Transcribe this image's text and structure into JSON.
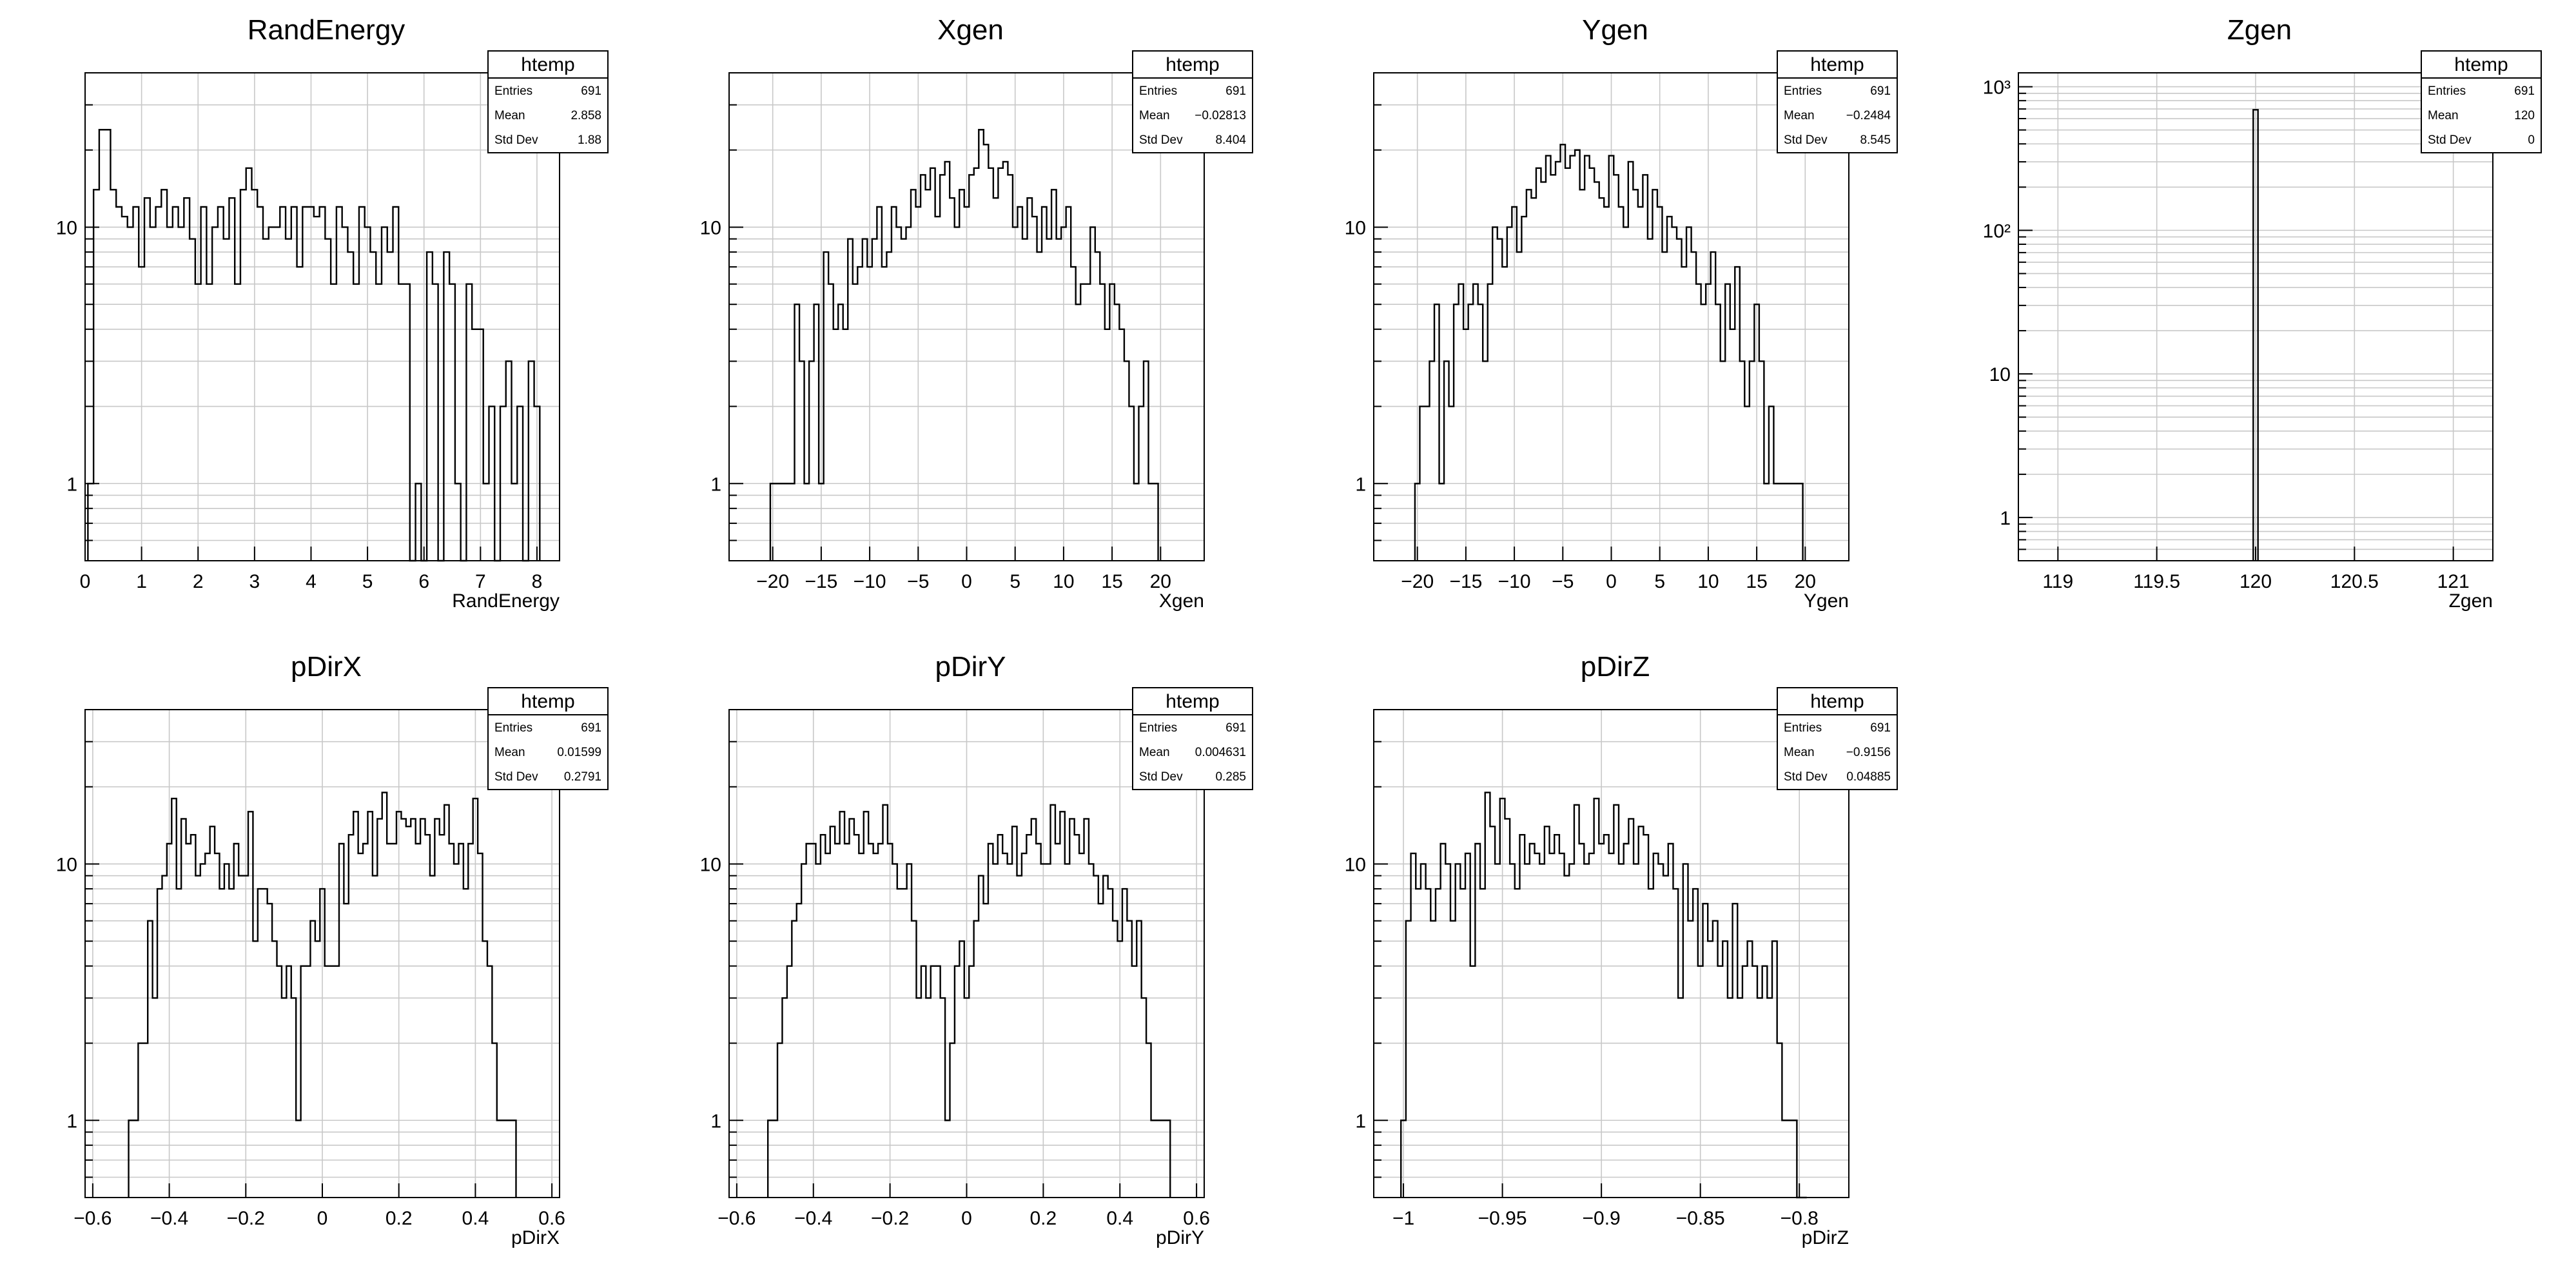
{
  "chart_data": [
    {
      "type": "histogram",
      "title": "RandEnergy",
      "xlabel": "RandEnergy",
      "ylabel": "",
      "xlim": [
        0,
        8.4
      ],
      "ylim": [
        0.5,
        40
      ],
      "yscale": "log",
      "grid": true,
      "xticks": [
        0,
        1,
        2,
        3,
        4,
        5,
        6,
        7,
        8
      ],
      "xtick_labels": [
        "0",
        "1",
        "2",
        "3",
        "4",
        "5",
        "6",
        "7",
        "8"
      ],
      "yticks": [
        1,
        10
      ],
      "ytick_labels": [
        "1",
        "10"
      ],
      "stats": {
        "name": "htemp",
        "rows": [
          [
            "Entries",
            "691"
          ],
          [
            "Mean",
            "2.858"
          ],
          [
            "Std Dev",
            "1.88"
          ]
        ]
      },
      "bin_width": 0.1,
      "x": [
        0.1,
        0.2,
        0.3,
        0.4,
        0.5,
        0.6,
        0.7,
        0.8,
        0.9,
        1.0,
        1.1,
        1.2,
        1.3,
        1.4,
        1.5,
        1.6,
        1.7,
        1.8,
        1.9,
        2.0,
        2.1,
        2.2,
        2.3,
        2.4,
        2.5,
        2.6,
        2.7,
        2.8,
        2.9,
        3.0,
        3.1,
        3.2,
        3.3,
        3.4,
        3.5,
        3.6,
        3.7,
        3.8,
        3.9,
        4.0,
        4.1,
        4.2,
        4.3,
        4.4,
        4.5,
        4.6,
        4.7,
        4.8,
        4.9,
        5.0,
        5.1,
        5.2,
        5.3,
        5.4,
        5.5,
        5.6,
        5.7,
        5.8,
        5.9,
        6.0,
        6.1,
        6.2,
        6.3,
        6.4,
        6.5,
        6.6,
        6.7,
        6.8,
        6.9,
        7.0,
        7.1,
        7.2,
        7.3,
        7.4,
        7.5,
        7.6,
        7.7,
        7.8,
        7.9,
        8.0
      ],
      "y": [
        1,
        14,
        24,
        24,
        14,
        12,
        11,
        10,
        12,
        7,
        13,
        10,
        12,
        14,
        10,
        12,
        10,
        13,
        9,
        6,
        12,
        6,
        10,
        12,
        9,
        13,
        6,
        14,
        17,
        14,
        12,
        9,
        10,
        10,
        12,
        9,
        12,
        7,
        12,
        12,
        11,
        12,
        9,
        6,
        12,
        10,
        8,
        6,
        12,
        10,
        8,
        6,
        10,
        8,
        12,
        6,
        6,
        0,
        1,
        0,
        8,
        6,
        0,
        8,
        6,
        1,
        0,
        6,
        4,
        4,
        1,
        2,
        0,
        2,
        3,
        1,
        2,
        0,
        3,
        2
      ]
    },
    {
      "type": "histogram",
      "title": "Xgen",
      "xlabel": "Xgen",
      "ylabel": "",
      "xlim": [
        -24.5,
        24.5
      ],
      "ylim": [
        0.5,
        40
      ],
      "yscale": "log",
      "grid": true,
      "xticks": [
        -20,
        -15,
        -10,
        -5,
        0,
        5,
        10,
        15,
        20
      ],
      "xtick_labels": [
        "−20",
        "−15",
        "−10",
        "−5",
        "0",
        "5",
        "10",
        "15",
        "20"
      ],
      "yticks": [
        1,
        10
      ],
      "ytick_labels": [
        "1",
        "10"
      ],
      "stats": {
        "name": "htemp",
        "rows": [
          [
            "Entries",
            "691"
          ],
          [
            "Mean",
            "−0.02813"
          ],
          [
            "Std Dev",
            "8.404"
          ]
        ]
      },
      "bin_width": 0.5,
      "x": [
        -20.0,
        -19.5,
        -19.0,
        -18.5,
        -18.0,
        -17.5,
        -17.0,
        -16.5,
        -16.0,
        -15.5,
        -15.0,
        -14.5,
        -14.0,
        -13.5,
        -13.0,
        -12.5,
        -12.0,
        -11.5,
        -11.0,
        -10.5,
        -10.0,
        -9.5,
        -9.0,
        -8.5,
        -8.0,
        -7.5,
        -7.0,
        -6.5,
        -6.0,
        -5.5,
        -5.0,
        -4.5,
        -4.0,
        -3.5,
        -3.0,
        -2.5,
        -2.0,
        -1.5,
        -1.0,
        -0.5,
        0.0,
        0.5,
        1.0,
        1.5,
        2.0,
        2.5,
        3.0,
        3.5,
        4.0,
        4.5,
        5.0,
        5.5,
        6.0,
        6.5,
        7.0,
        7.5,
        8.0,
        8.5,
        9.0,
        9.5,
        10.0,
        10.5,
        11.0,
        11.5,
        12.0,
        12.5,
        13.0,
        13.5,
        14.0,
        14.5,
        15.0,
        15.5,
        16.0,
        16.5,
        17.0,
        17.5,
        18.0,
        18.5,
        19.0,
        19.5
      ],
      "y": [
        1,
        1,
        1,
        1,
        1,
        5,
        3,
        1,
        3,
        5,
        1,
        8,
        6,
        4,
        5,
        4,
        9,
        6,
        7,
        9,
        7,
        9,
        12,
        7,
        8,
        12,
        10,
        9,
        10,
        14,
        12,
        16,
        14,
        17,
        11,
        16,
        18,
        13,
        10,
        14,
        12,
        16,
        17,
        24,
        21,
        17,
        13,
        17,
        18,
        16,
        10,
        12,
        9,
        13,
        11,
        8,
        12,
        9,
        14,
        9,
        10,
        12,
        7,
        5,
        6,
        6,
        10,
        8,
        6,
        4,
        6,
        5,
        4,
        3,
        2,
        1,
        2,
        3,
        1,
        1
      ]
    },
    {
      "type": "histogram",
      "title": "Ygen",
      "xlabel": "Ygen",
      "ylabel": "",
      "xlim": [
        -24.5,
        24.5
      ],
      "ylim": [
        0.5,
        40
      ],
      "yscale": "log",
      "grid": true,
      "xticks": [
        -20,
        -15,
        -10,
        -5,
        0,
        5,
        10,
        15,
        20
      ],
      "xtick_labels": [
        "−20",
        "−15",
        "−10",
        "−5",
        "0",
        "5",
        "10",
        "15",
        "20"
      ],
      "yticks": [
        1,
        10
      ],
      "ytick_labels": [
        "1",
        "10"
      ],
      "stats": {
        "name": "htemp",
        "rows": [
          [
            "Entries",
            "691"
          ],
          [
            "Mean",
            "−0.2484"
          ],
          [
            "Std Dev",
            "8.545"
          ]
        ]
      },
      "bin_width": 0.5,
      "x": [
        -20.0,
        -19.5,
        -19.0,
        -18.5,
        -18.0,
        -17.5,
        -17.0,
        -16.5,
        -16.0,
        -15.5,
        -15.0,
        -14.5,
        -14.0,
        -13.5,
        -13.0,
        -12.5,
        -12.0,
        -11.5,
        -11.0,
        -10.5,
        -10.0,
        -9.5,
        -9.0,
        -8.5,
        -8.0,
        -7.5,
        -7.0,
        -6.5,
        -6.0,
        -5.5,
        -5.0,
        -4.5,
        -4.0,
        -3.5,
        -3.0,
        -2.5,
        -2.0,
        -1.5,
        -1.0,
        -0.5,
        0.0,
        0.5,
        1.0,
        1.5,
        2.0,
        2.5,
        3.0,
        3.5,
        4.0,
        4.5,
        5.0,
        5.5,
        6.0,
        6.5,
        7.0,
        7.5,
        8.0,
        8.5,
        9.0,
        9.5,
        10.0,
        10.5,
        11.0,
        11.5,
        12.0,
        12.5,
        13.0,
        13.5,
        14.0,
        14.5,
        15.0,
        15.5,
        16.0,
        16.5,
        17.0,
        17.5,
        18.0,
        18.5,
        19.0,
        19.5
      ],
      "y": [
        1,
        2,
        2,
        3,
        5,
        1,
        3,
        2,
        5,
        6,
        4,
        5,
        6,
        5,
        3,
        6,
        10,
        9,
        7,
        10,
        12,
        8,
        11,
        14,
        13,
        17,
        15,
        19,
        16,
        18,
        21,
        17,
        19,
        20,
        14,
        19,
        17,
        15,
        13,
        12,
        19,
        16,
        12,
        10,
        18,
        14,
        12,
        16,
        9,
        14,
        12,
        8,
        11,
        10,
        9,
        7,
        10,
        8,
        6,
        5,
        6,
        8,
        5,
        3,
        6,
        4,
        7,
        3,
        2,
        3,
        5,
        3,
        1,
        2,
        1,
        1,
        1,
        1,
        1,
        1
      ]
    },
    {
      "type": "histogram",
      "title": "Zgen",
      "xlabel": "Zgen",
      "ylabel": "",
      "xlim": [
        118.8,
        121.2
      ],
      "ylim": [
        0.5,
        1250
      ],
      "yscale": "log",
      "grid": true,
      "xticks": [
        119,
        119.5,
        120,
        120.5,
        121
      ],
      "xtick_labels": [
        "119",
        "119.5",
        "120",
        "120.5",
        "121"
      ],
      "yticks": [
        1,
        10,
        100,
        1000
      ],
      "ytick_labels": [
        "1",
        "10",
        "10²",
        "10³"
      ],
      "stats": {
        "name": "htemp",
        "rows": [
          [
            "Entries",
            "691"
          ],
          [
            "Mean",
            "120"
          ],
          [
            "Std Dev",
            "0"
          ]
        ]
      },
      "bin_width": 0.024,
      "x": [
        120.0
      ],
      "y": [
        691
      ]
    },
    {
      "type": "histogram",
      "title": "pDirX",
      "xlabel": "pDirX",
      "ylabel": "",
      "xlim": [
        -0.62,
        0.62
      ],
      "ylim": [
        0.5,
        40
      ],
      "yscale": "log",
      "grid": true,
      "xticks": [
        -0.6,
        -0.4,
        -0.2,
        0,
        0.2,
        0.4,
        0.6
      ],
      "xtick_labels": [
        "−0.6",
        "−0.4",
        "−0.2",
        "0",
        "0.2",
        "0.4",
        "0.6"
      ],
      "yticks": [
        1,
        10
      ],
      "ytick_labels": [
        "1",
        "10"
      ],
      "stats": {
        "name": "htemp",
        "rows": [
          [
            "Entries",
            "691"
          ],
          [
            "Mean",
            "0.01599"
          ],
          [
            "Std Dev",
            "0.2791"
          ]
        ]
      },
      "bin_width": 0.0125,
      "x": [
        -0.5,
        -0.4875,
        -0.475,
        -0.4625,
        -0.45,
        -0.4375,
        -0.425,
        -0.4125,
        -0.4,
        -0.3875,
        -0.375,
        -0.3625,
        -0.35,
        -0.3375,
        -0.325,
        -0.3125,
        -0.3,
        -0.2875,
        -0.275,
        -0.2625,
        -0.25,
        -0.2375,
        -0.225,
        -0.2125,
        -0.2,
        -0.1875,
        -0.175,
        -0.1625,
        -0.15,
        -0.1375,
        -0.125,
        -0.1125,
        -0.1,
        -0.0875,
        -0.075,
        -0.0625,
        -0.05,
        -0.0375,
        -0.025,
        -0.0125,
        0.0,
        0.0125,
        0.025,
        0.0375,
        0.05,
        0.0625,
        0.075,
        0.0875,
        0.1,
        0.1125,
        0.125,
        0.1375,
        0.15,
        0.1625,
        0.175,
        0.1875,
        0.2,
        0.2125,
        0.225,
        0.2375,
        0.25,
        0.2625,
        0.275,
        0.2875,
        0.3,
        0.3125,
        0.325,
        0.3375,
        0.35,
        0.3625,
        0.375,
        0.3875,
        0.4,
        0.4125,
        0.425,
        0.4375,
        0.45,
        0.4625,
        0.475,
        0.4875,
        0.5
      ],
      "y": [
        1,
        1,
        2,
        2,
        6,
        3,
        8,
        9,
        12,
        18,
        8,
        15,
        12,
        13,
        9,
        10,
        11,
        14,
        11,
        8,
        10,
        8,
        12,
        9,
        9,
        16,
        5,
        8,
        8,
        7,
        5,
        4,
        3,
        4,
        3,
        1,
        4,
        4,
        6,
        5,
        8,
        4,
        4,
        4,
        12,
        7,
        13,
        16,
        11,
        12,
        16,
        9,
        15,
        19,
        12,
        12,
        16,
        15,
        14,
        15,
        12,
        15,
        13,
        9,
        15,
        13,
        17,
        12,
        10,
        12,
        8,
        12,
        18,
        11,
        5,
        4,
        2,
        1,
        1,
        1,
        1
      ]
    },
    {
      "type": "histogram",
      "title": "pDirY",
      "xlabel": "pDirY",
      "ylabel": "",
      "xlim": [
        -0.62,
        0.62
      ],
      "ylim": [
        0.5,
        40
      ],
      "yscale": "log",
      "grid": true,
      "xticks": [
        -0.6,
        -0.4,
        -0.2,
        0,
        0.2,
        0.4,
        0.6
      ],
      "xtick_labels": [
        "−0.6",
        "−0.4",
        "−0.2",
        "0",
        "0.2",
        "0.4",
        "0.6"
      ],
      "yticks": [
        1,
        10
      ],
      "ytick_labels": [
        "1",
        "10"
      ],
      "stats": {
        "name": "htemp",
        "rows": [
          [
            "Entries",
            "691"
          ],
          [
            "Mean",
            "0.004631"
          ],
          [
            "Std Dev",
            "0.285"
          ]
        ]
      },
      "bin_width": 0.0125,
      "x": [
        -0.5125,
        -0.5,
        -0.4875,
        -0.475,
        -0.4625,
        -0.45,
        -0.4375,
        -0.425,
        -0.4125,
        -0.4,
        -0.3875,
        -0.375,
        -0.3625,
        -0.35,
        -0.3375,
        -0.325,
        -0.3125,
        -0.3,
        -0.2875,
        -0.275,
        -0.2625,
        -0.25,
        -0.2375,
        -0.225,
        -0.2125,
        -0.2,
        -0.1875,
        -0.175,
        -0.1625,
        -0.15,
        -0.1375,
        -0.125,
        -0.1125,
        -0.1,
        -0.0875,
        -0.075,
        -0.0625,
        -0.05,
        -0.0375,
        -0.025,
        -0.0125,
        0.0,
        0.0125,
        0.025,
        0.0375,
        0.05,
        0.0625,
        0.075,
        0.0875,
        0.1,
        0.1125,
        0.125,
        0.1375,
        0.15,
        0.1625,
        0.175,
        0.1875,
        0.2,
        0.2125,
        0.225,
        0.2375,
        0.25,
        0.2625,
        0.275,
        0.2875,
        0.3,
        0.3125,
        0.325,
        0.3375,
        0.35,
        0.3625,
        0.375,
        0.3875,
        0.4,
        0.4125,
        0.425,
        0.4375,
        0.45,
        0.4625,
        0.475,
        0.4875,
        0.5,
        0.5125,
        0.525
      ],
      "y": [
        1,
        1,
        2,
        3,
        4,
        6,
        7,
        10,
        12,
        12,
        10,
        13,
        11,
        14,
        12,
        16,
        12,
        15,
        13,
        11,
        16,
        12,
        11,
        12,
        17,
        12,
        10,
        8,
        8,
        10,
        6,
        3,
        4,
        3,
        4,
        4,
        3,
        1,
        2,
        4,
        5,
        3,
        4,
        6,
        9,
        7,
        12,
        10,
        13,
        11,
        10,
        14,
        9,
        11,
        13,
        15,
        12,
        10,
        10,
        17,
        12,
        16,
        10,
        15,
        13,
        11,
        15,
        10,
        9,
        7,
        9,
        8,
        6,
        5,
        8,
        6,
        4,
        6,
        3,
        2,
        1,
        1,
        1,
        1
      ]
    },
    {
      "type": "histogram",
      "title": "pDirZ",
      "xlabel": "pDirZ",
      "ylabel": "",
      "xlim": [
        -1.015,
        -0.775
      ],
      "ylim": [
        0.5,
        40
      ],
      "yscale": "log",
      "grid": true,
      "xticks": [
        -1,
        -0.95,
        -0.9,
        -0.85,
        -0.8
      ],
      "xtick_labels": [
        "−1",
        "−0.95",
        "−0.9",
        "−0.85",
        "−0.8"
      ],
      "yticks": [
        1,
        10
      ],
      "ytick_labels": [
        "1",
        "10"
      ],
      "stats": {
        "name": "htemp",
        "rows": [
          [
            "Entries",
            "691"
          ],
          [
            "Mean",
            "−0.9156"
          ],
          [
            "Std Dev",
            "0.04885"
          ]
        ]
      },
      "bin_width": 0.0025,
      "x": [
        -1.0,
        -0.9975,
        -0.995,
        -0.9925,
        -0.99,
        -0.9875,
        -0.985,
        -0.9825,
        -0.98,
        -0.9775,
        -0.975,
        -0.9725,
        -0.97,
        -0.9675,
        -0.965,
        -0.9625,
        -0.96,
        -0.9575,
        -0.955,
        -0.9525,
        -0.95,
        -0.9475,
        -0.945,
        -0.9425,
        -0.94,
        -0.9375,
        -0.935,
        -0.9325,
        -0.93,
        -0.9275,
        -0.925,
        -0.9225,
        -0.92,
        -0.9175,
        -0.915,
        -0.9125,
        -0.91,
        -0.9075,
        -0.905,
        -0.9025,
        -0.9,
        -0.8975,
        -0.895,
        -0.8925,
        -0.89,
        -0.8875,
        -0.885,
        -0.8825,
        -0.88,
        -0.8775,
        -0.875,
        -0.8725,
        -0.87,
        -0.8675,
        -0.865,
        -0.8625,
        -0.86,
        -0.8575,
        -0.855,
        -0.8525,
        -0.85,
        -0.8475,
        -0.845,
        -0.8425,
        -0.84,
        -0.8375,
        -0.835,
        -0.8325,
        -0.83,
        -0.8275,
        -0.825,
        -0.8225,
        -0.82,
        -0.8175,
        -0.815,
        -0.8125,
        -0.81,
        -0.8075,
        -0.805,
        -0.8025,
        -0.8,
        -0.7975
      ],
      "y": [
        1,
        6,
        11,
        8,
        10,
        8,
        6,
        8,
        12,
        10,
        6,
        10,
        8,
        11,
        4,
        12,
        8,
        19,
        14,
        10,
        18,
        15,
        10,
        8,
        13,
        10,
        12,
        11,
        10,
        14,
        11,
        13,
        11,
        9,
        10,
        17,
        12,
        10,
        11,
        18,
        12,
        13,
        11,
        17,
        10,
        12,
        15,
        10,
        14,
        13,
        8,
        11,
        10,
        9,
        12,
        8,
        3,
        10,
        6,
        8,
        4,
        7,
        5,
        6,
        4,
        5,
        3,
        7,
        3,
        4,
        5,
        4,
        3,
        4,
        3,
        5,
        2,
        1,
        1,
        1,
        0,
        0
      ]
    }
  ]
}
